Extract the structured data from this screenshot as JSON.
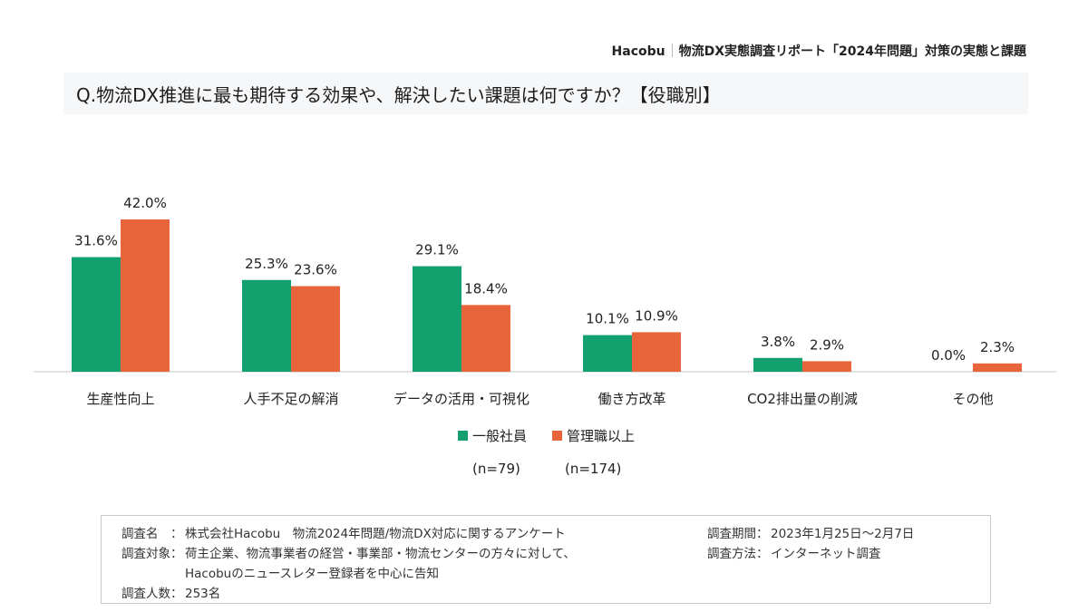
{
  "header": {
    "brand": "Hacobu",
    "report_title": "物流DX実態調査リポート「2024年問題」対策の実態と課題"
  },
  "question": "Q.物流DX推進に最も期待する効果や、解決したい課題は何ですか？【役職別】",
  "chart_data": {
    "type": "bar",
    "title": "Q.物流DX推進に最も期待する効果や、解決したい課題は何ですか？【役職別】",
    "xlabel": "",
    "ylabel": "",
    "ylim": [
      0,
      45
    ],
    "grid": false,
    "legend_position": "bottom",
    "categories": [
      "生産性向上",
      "人手不足の解消",
      "データの活用・可視化",
      "働き方改革",
      "CO2排出量の削減",
      "その他"
    ],
    "series": [
      {
        "name": "一般社員",
        "n_label": "(n=79)",
        "color": "#12a06e",
        "values": [
          31.6,
          25.3,
          29.1,
          10.1,
          3.8,
          0.0
        ],
        "labels": [
          "31.6%",
          "25.3%",
          "29.1%",
          "10.1%",
          "3.8%",
          "0.0%"
        ]
      },
      {
        "name": "管理職以上",
        "n_label": "(n=174)",
        "color": "#e8643a",
        "values": [
          42.0,
          23.6,
          18.4,
          10.9,
          2.9,
          2.3
        ],
        "labels": [
          "42.0%",
          "23.6%",
          "18.4%",
          "10.9%",
          "2.9%",
          "2.3%"
        ]
      }
    ]
  },
  "info": {
    "name_label": "調査名　：",
    "name_value": "株式会社Hacobu　物流2024年問題/物流DX対応に関するアンケート",
    "target_label": "調査対象：",
    "target_value_1": "荷主企業、物流事業者の経営・事業部・物流センターの方々に対して、",
    "target_value_2": "Hacobuのニュースレター登録者を中心に告知",
    "count_label": "調査人数：",
    "count_value": "253名",
    "period_label": "調査期間：",
    "period_value": "2023年1月25日～2月7日",
    "method_label": "調査方法：",
    "method_value": "インターネット調査"
  }
}
